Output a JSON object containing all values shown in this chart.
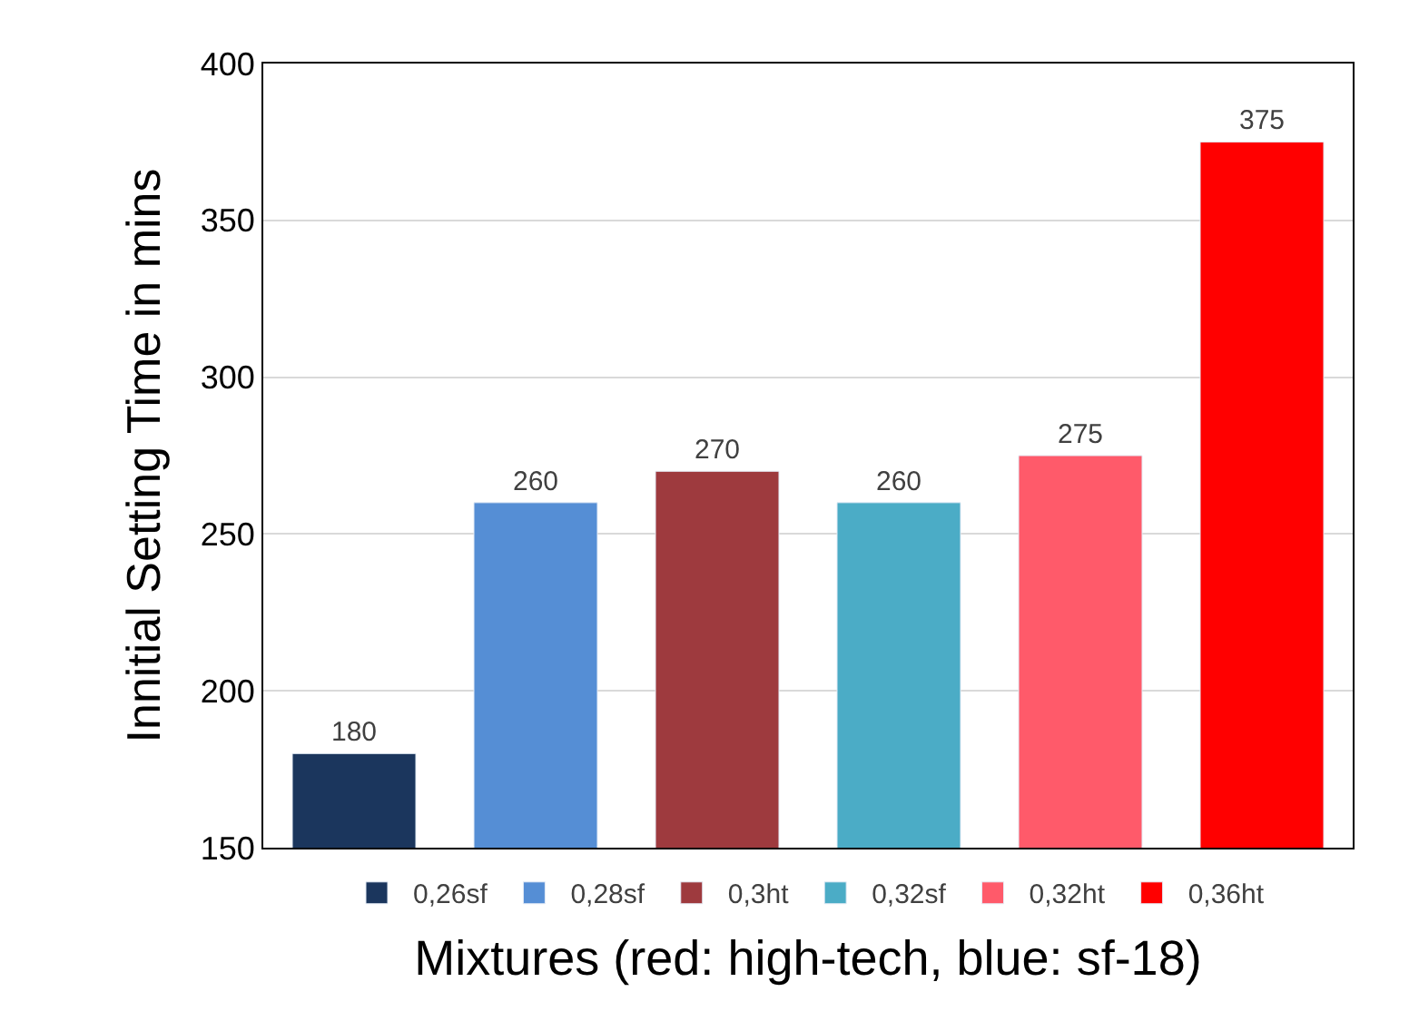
{
  "chart_data": {
    "type": "bar",
    "xlabel": "Mixtures (red: high-tech, blue: sf-18)",
    "ylabel": "Innitial Setting Time in mins",
    "categories": [
      null,
      null,
      null,
      null,
      null,
      null
    ],
    "series": [
      {
        "name": "0,26sf",
        "color": "#1b365d",
        "values": [
          180,
          null,
          null,
          null,
          null,
          null
        ]
      },
      {
        "name": "0,28sf",
        "color": "#558ed5",
        "values": [
          null,
          260,
          null,
          null,
          null,
          null
        ]
      },
      {
        "name": "0,3ht",
        "color": "#9e3a3e",
        "values": [
          null,
          null,
          270,
          null,
          null,
          null
        ]
      },
      {
        "name": "0,32sf",
        "color": "#4bacc6",
        "values": [
          null,
          null,
          null,
          260,
          null,
          null
        ]
      },
      {
        "name": "0,32ht",
        "color": "#ff5a6a",
        "values": [
          null,
          null,
          null,
          null,
          275,
          null
        ]
      },
      {
        "name": "0,36ht",
        "color": "#ff0000",
        "values": [
          null,
          null,
          null,
          null,
          null,
          375
        ]
      }
    ],
    "ylim": [
      150,
      400
    ],
    "yticks": [
      150,
      200,
      250,
      300,
      350,
      400
    ],
    "grid": "y",
    "legend": "bottom",
    "data_labels": true
  }
}
